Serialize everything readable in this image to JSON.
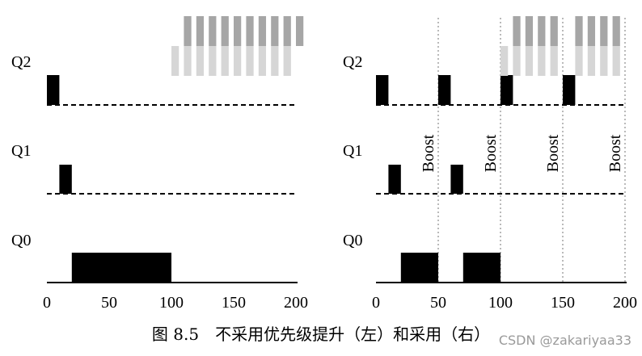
{
  "queue_labels": {
    "q2": "Q2",
    "q1": "Q1",
    "q0": "Q0"
  },
  "axis": {
    "ticks": [
      "0",
      "50",
      "100",
      "150",
      "200"
    ],
    "min": 0,
    "max": 200
  },
  "boost_label": "Boost",
  "caption": "图 8.5　不采用优先级提升（左）和采用（右）",
  "watermark": "CSDN @zakariyaa33",
  "left_panel": {
    "q2_jobs": [
      [
        0,
        10
      ]
    ],
    "q1_jobs": [
      [
        10,
        20
      ]
    ],
    "q0_jobs": [
      [
        20,
        100
      ]
    ],
    "waiting_bars_dark": [
      [
        110,
        210
      ]
    ],
    "waiting_bars_light": [
      [
        100,
        200
      ]
    ]
  },
  "right_panel": {
    "boost_times": [
      50,
      100,
      150,
      200
    ],
    "q2_jobs": [
      [
        0,
        10
      ],
      [
        50,
        60
      ],
      [
        100,
        110
      ],
      [
        150,
        160
      ]
    ],
    "q1_jobs": [
      [
        10,
        20
      ],
      [
        60,
        70
      ]
    ],
    "q0_jobs": [
      [
        20,
        50
      ],
      [
        70,
        100
      ]
    ],
    "waiting_bars_dark": [
      [
        110,
        150
      ],
      [
        160,
        200
      ]
    ],
    "waiting_bars_light": [
      [
        100,
        150
      ],
      [
        160,
        200
      ]
    ]
  }
}
